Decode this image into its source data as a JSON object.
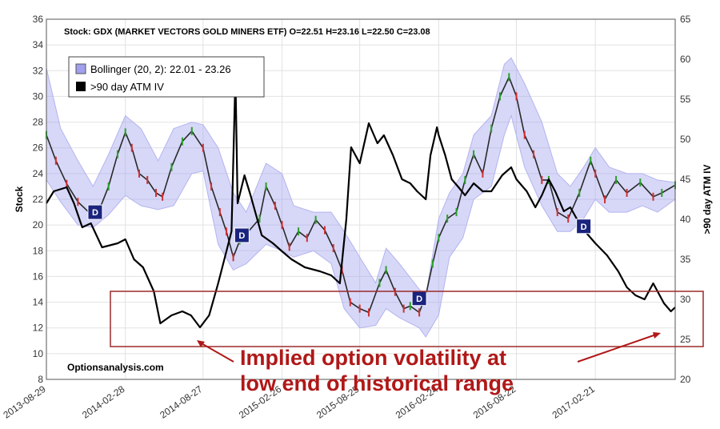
{
  "chart_data": {
    "type": "line",
    "header": "Stock: GDX (MARKET VECTORS GOLD MINERS ETF) O=22.51  H=23.16  L=22.50  C=23.08",
    "ylabel": "Stock",
    "y2label": ">90 day ATM IV",
    "ylim": [
      8,
      36
    ],
    "y2lim": [
      20,
      65
    ],
    "yticks": [
      "8",
      "10",
      "12",
      "14",
      "16",
      "18",
      "20",
      "22",
      "24",
      "26",
      "28",
      "30",
      "32",
      "34",
      "36"
    ],
    "y2ticks": [
      "20",
      "25",
      "30",
      "35",
      "40",
      "45",
      "50",
      "55",
      "60",
      "65"
    ],
    "xticks": [
      "2013-08-29",
      "2014-02-28",
      "2014-08-27",
      "2015-02-26",
      "2015-08-25",
      "2016-02-24",
      "2016-08-22",
      "2017-02-21"
    ],
    "x_start": "2013-08-29",
    "x_end": "2017-08-25",
    "grid": true,
    "legend": {
      "placement": "top-left",
      "items": [
        {
          "label": "Bollinger (20, 2): 22.01 - 23.26",
          "color": "#a0a0ee"
        },
        {
          "label": ">90 day ATM IV",
          "color": "#000000"
        }
      ]
    },
    "watermark": "Optionsanalysis.com",
    "annotation": {
      "lines": [
        "Implied option volatility at",
        "low end of historical range"
      ],
      "color": "#b01818"
    },
    "series": [
      {
        "name": "GDX",
        "axis": "left",
        "color": "#2a2a2a",
        "points": [
          [
            "2013-08-29",
            27.0
          ],
          [
            "2013-09-20",
            25.0
          ],
          [
            "2013-10-15",
            23.2
          ],
          [
            "2013-11-10",
            21.8
          ],
          [
            "2013-12-05",
            21.0
          ],
          [
            "2013-12-31",
            21.3
          ],
          [
            "2014-01-20",
            23.0
          ],
          [
            "2014-02-10",
            25.5
          ],
          [
            "2014-02-28",
            27.2
          ],
          [
            "2014-03-15",
            26.0
          ],
          [
            "2014-04-01",
            24.0
          ],
          [
            "2014-04-20",
            23.5
          ],
          [
            "2014-05-10",
            22.5
          ],
          [
            "2014-05-25",
            22.2
          ],
          [
            "2014-06-15",
            24.5
          ],
          [
            "2014-07-10",
            26.5
          ],
          [
            "2014-08-01",
            27.3
          ],
          [
            "2014-08-27",
            26.0
          ],
          [
            "2014-09-15",
            23.0
          ],
          [
            "2014-10-05",
            21.0
          ],
          [
            "2014-10-20",
            19.5
          ],
          [
            "2014-11-05",
            17.5
          ],
          [
            "2014-11-20",
            18.8
          ],
          [
            "2014-12-10",
            19.5
          ],
          [
            "2015-01-05",
            20.5
          ],
          [
            "2015-01-20",
            23.0
          ],
          [
            "2015-02-10",
            21.5
          ],
          [
            "2015-02-26",
            20.0
          ],
          [
            "2015-03-15",
            18.3
          ],
          [
            "2015-04-05",
            19.5
          ],
          [
            "2015-04-25",
            19.0
          ],
          [
            "2015-05-15",
            20.4
          ],
          [
            "2015-06-05",
            19.6
          ],
          [
            "2015-06-25",
            18.2
          ],
          [
            "2015-07-15",
            16.5
          ],
          [
            "2015-08-03",
            14.0
          ],
          [
            "2015-08-25",
            13.5
          ],
          [
            "2015-09-15",
            13.2
          ],
          [
            "2015-10-10",
            15.5
          ],
          [
            "2015-10-25",
            16.5
          ],
          [
            "2015-11-15",
            14.8
          ],
          [
            "2015-12-05",
            13.5
          ],
          [
            "2015-12-20",
            13.7
          ],
          [
            "2016-01-10",
            13.2
          ],
          [
            "2016-01-25",
            14.5
          ],
          [
            "2016-02-10",
            17.0
          ],
          [
            "2016-02-24",
            19.0
          ],
          [
            "2016-03-15",
            20.5
          ],
          [
            "2016-04-05",
            21.0
          ],
          [
            "2016-04-25",
            23.5
          ],
          [
            "2016-05-15",
            25.5
          ],
          [
            "2016-06-05",
            24.0
          ],
          [
            "2016-06-25",
            27.5
          ],
          [
            "2016-07-15",
            30.0
          ],
          [
            "2016-08-05",
            31.5
          ],
          [
            "2016-08-22",
            30.0
          ],
          [
            "2016-09-10",
            27.0
          ],
          [
            "2016-10-01",
            25.5
          ],
          [
            "2016-10-20",
            23.5
          ],
          [
            "2016-11-05",
            23.5
          ],
          [
            "2016-11-25",
            21.0
          ],
          [
            "2016-12-20",
            20.5
          ],
          [
            "2017-01-15",
            22.5
          ],
          [
            "2017-02-10",
            25.0
          ],
          [
            "2017-02-21",
            24.0
          ],
          [
            "2017-03-15",
            22.0
          ],
          [
            "2017-04-10",
            23.5
          ],
          [
            "2017-05-05",
            22.5
          ],
          [
            "2017-06-05",
            23.3
          ],
          [
            "2017-07-05",
            22.2
          ],
          [
            "2017-07-25",
            22.5
          ],
          [
            "2017-08-25",
            23.1
          ]
        ]
      },
      {
        "name": "Bollinger (20, 2)",
        "axis": "left",
        "color": "#a0a0ee",
        "points": [
          [
            "2013-08-29",
            32.2,
            23.5
          ],
          [
            "2013-10-01",
            27.5,
            21.8
          ],
          [
            "2013-11-10",
            25.0,
            20.0
          ],
          [
            "2013-12-15",
            23.0,
            19.8
          ],
          [
            "2014-01-20",
            25.5,
            20.8
          ],
          [
            "2014-02-28",
            28.5,
            22.3
          ],
          [
            "2014-04-05",
            27.5,
            21.5
          ],
          [
            "2014-05-15",
            25.0,
            21.2
          ],
          [
            "2014-06-20",
            27.5,
            21.5
          ],
          [
            "2014-08-01",
            28.0,
            24.0
          ],
          [
            "2014-08-27",
            27.8,
            24.2
          ],
          [
            "2014-10-01",
            26.0,
            18.5
          ],
          [
            "2014-11-05",
            22.5,
            16.5
          ],
          [
            "2014-12-05",
            21.0,
            17.0
          ],
          [
            "2015-01-20",
            24.8,
            18.5
          ],
          [
            "2015-02-26",
            24.0,
            18.0
          ],
          [
            "2015-03-25",
            21.5,
            17.5
          ],
          [
            "2015-05-10",
            21.0,
            18.0
          ],
          [
            "2015-06-20",
            21.0,
            17.0
          ],
          [
            "2015-07-20",
            19.5,
            13.5
          ],
          [
            "2015-08-25",
            17.5,
            12.0
          ],
          [
            "2015-10-01",
            15.5,
            12.2
          ],
          [
            "2015-10-25",
            18.2,
            13.5
          ],
          [
            "2015-11-25",
            17.0,
            12.8
          ],
          [
            "2016-01-10",
            15.0,
            12.0
          ],
          [
            "2016-01-25",
            14.5,
            11.3
          ],
          [
            "2016-02-24",
            20.5,
            13.0
          ],
          [
            "2016-03-20",
            22.5,
            17.5
          ],
          [
            "2016-04-20",
            24.0,
            19.0
          ],
          [
            "2016-05-15",
            27.0,
            22.0
          ],
          [
            "2016-06-25",
            28.5,
            23.0
          ],
          [
            "2016-07-25",
            32.5,
            27.0
          ],
          [
            "2016-08-10",
            33.0,
            28.5
          ],
          [
            "2016-09-10",
            31.0,
            24.5
          ],
          [
            "2016-10-20",
            28.0,
            21.5
          ],
          [
            "2016-11-25",
            24.0,
            19.5
          ],
          [
            "2016-12-25",
            23.0,
            19.5
          ],
          [
            "2017-01-25",
            24.5,
            20.5
          ],
          [
            "2017-02-21",
            26.0,
            22.0
          ],
          [
            "2017-03-25",
            24.5,
            21.0
          ],
          [
            "2017-05-05",
            24.0,
            21.0
          ],
          [
            "2017-06-10",
            24.0,
            21.5
          ],
          [
            "2017-07-15",
            23.5,
            21.0
          ],
          [
            "2017-08-25",
            23.3,
            22.0
          ]
        ]
      },
      {
        "name": ">90 day ATM IV",
        "axis": "right",
        "color": "#000000",
        "points": [
          [
            "2013-08-29",
            42.0
          ],
          [
            "2013-09-15",
            43.5
          ],
          [
            "2013-10-15",
            44.0
          ],
          [
            "2013-11-01",
            42.0
          ],
          [
            "2013-11-20",
            39.0
          ],
          [
            "2013-12-10",
            39.5
          ],
          [
            "2014-01-05",
            36.5
          ],
          [
            "2014-02-10",
            37.0
          ],
          [
            "2014-02-28",
            37.5
          ],
          [
            "2014-03-20",
            35.0
          ],
          [
            "2014-04-10",
            34.0
          ],
          [
            "2014-05-05",
            31.0
          ],
          [
            "2014-05-20",
            27.0
          ],
          [
            "2014-06-15",
            28.0
          ],
          [
            "2014-07-10",
            28.5
          ],
          [
            "2014-07-30",
            28.0
          ],
          [
            "2014-08-20",
            26.5
          ],
          [
            "2014-09-10",
            28.0
          ],
          [
            "2014-10-01",
            32.0
          ],
          [
            "2014-10-20",
            36.0
          ],
          [
            "2014-11-01",
            38.5
          ],
          [
            "2014-11-10",
            58.0
          ],
          [
            "2014-11-15",
            42.0
          ],
          [
            "2014-12-01",
            45.5
          ],
          [
            "2014-12-15",
            43.0
          ],
          [
            "2015-01-10",
            38.0
          ],
          [
            "2015-02-05",
            37.0
          ],
          [
            "2015-02-26",
            36.0
          ],
          [
            "2015-03-20",
            35.0
          ],
          [
            "2015-04-20",
            34.0
          ],
          [
            "2015-05-25",
            33.5
          ],
          [
            "2015-06-20",
            33.0
          ],
          [
            "2015-07-10",
            32.0
          ],
          [
            "2015-07-25",
            40.0
          ],
          [
            "2015-08-05",
            49.0
          ],
          [
            "2015-08-25",
            47.0
          ],
          [
            "2015-09-15",
            52.0
          ],
          [
            "2015-10-05",
            49.5
          ],
          [
            "2015-10-20",
            50.5
          ],
          [
            "2015-11-10",
            48.0
          ],
          [
            "2015-12-01",
            45.0
          ],
          [
            "2015-12-20",
            44.5
          ],
          [
            "2016-01-05",
            43.5
          ],
          [
            "2016-01-25",
            42.5
          ],
          [
            "2016-02-05",
            48.0
          ],
          [
            "2016-02-20",
            51.5
          ],
          [
            "2016-02-24",
            50.5
          ],
          [
            "2016-03-10",
            48.0
          ],
          [
            "2016-03-25",
            45.0
          ],
          [
            "2016-04-10",
            44.0
          ],
          [
            "2016-04-25",
            43.0
          ],
          [
            "2016-05-15",
            44.5
          ],
          [
            "2016-06-05",
            43.5
          ],
          [
            "2016-06-25",
            43.5
          ],
          [
            "2016-07-20",
            45.5
          ],
          [
            "2016-08-10",
            46.5
          ],
          [
            "2016-08-22",
            45.0
          ],
          [
            "2016-09-15",
            43.5
          ],
          [
            "2016-10-05",
            41.5
          ],
          [
            "2016-10-20",
            43.0
          ],
          [
            "2016-11-05",
            45.0
          ],
          [
            "2016-11-20",
            43.5
          ],
          [
            "2016-12-10",
            41.0
          ],
          [
            "2016-12-25",
            41.5
          ],
          [
            "2017-01-20",
            39.0
          ],
          [
            "2017-02-21",
            37.0
          ],
          [
            "2017-03-20",
            35.5
          ],
          [
            "2017-04-15",
            33.5
          ],
          [
            "2017-05-05",
            31.5
          ],
          [
            "2017-05-25",
            30.5
          ],
          [
            "2017-06-15",
            30.0
          ],
          [
            "2017-07-05",
            32.0
          ],
          [
            "2017-07-15",
            31.0
          ],
          [
            "2017-07-30",
            29.5
          ],
          [
            "2017-08-15",
            28.5
          ],
          [
            "2017-08-25",
            29.0
          ]
        ]
      }
    ],
    "markers": [
      {
        "date": "2013-12-20",
        "value": 21.0,
        "label": "D"
      },
      {
        "date": "2014-11-25",
        "value": 19.2,
        "label": "D"
      },
      {
        "date": "2016-01-10",
        "value": 14.3,
        "label": "D"
      },
      {
        "date": "2017-01-25",
        "value": 19.9,
        "label": "D"
      }
    ]
  }
}
